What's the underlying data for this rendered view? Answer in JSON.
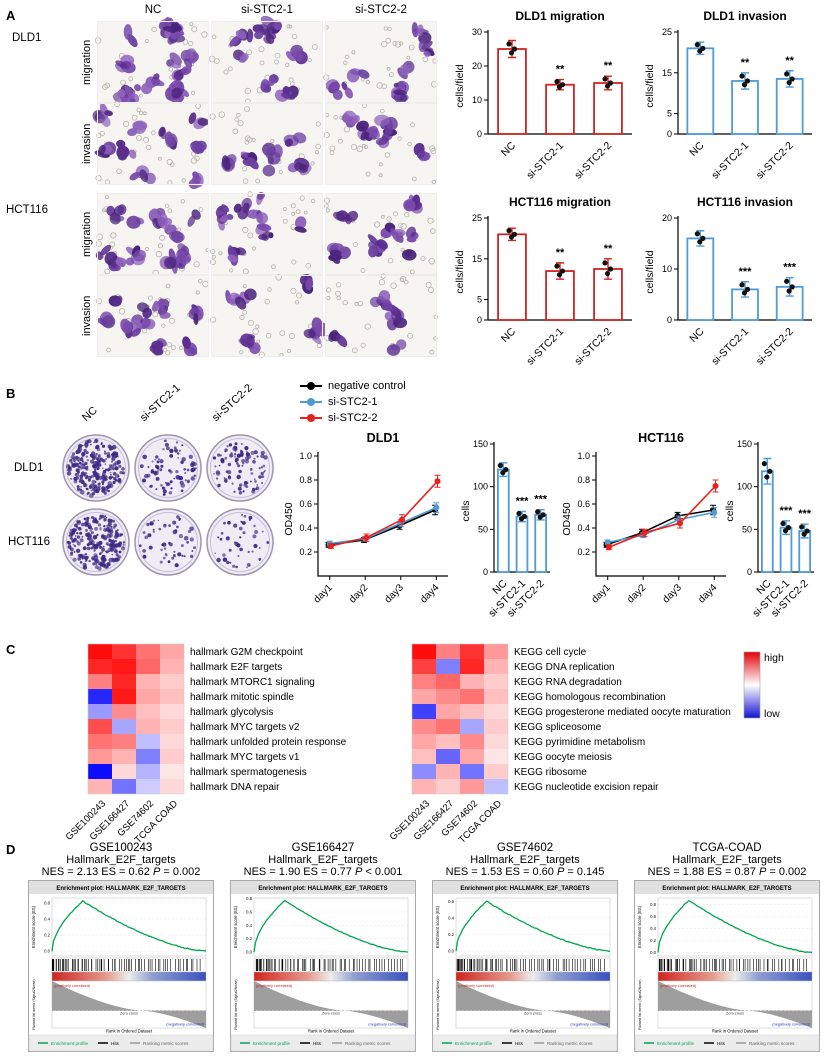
{
  "figure": {
    "panel_labels": {
      "a": "A",
      "b": "B",
      "c": "C",
      "d": "D"
    }
  },
  "panel_a": {
    "col_headers": [
      "NC",
      "si-STC2-1",
      "si-STC2-2"
    ],
    "groups": [
      {
        "cell_line": "DLD1",
        "rows": [
          "migration",
          "invasion"
        ]
      },
      {
        "cell_line": "HCT116",
        "rows": [
          "migration",
          "invasion"
        ]
      }
    ]
  },
  "panel_b": {
    "col_headers": [
      "NC",
      "si-STC2-1",
      "si-STC2-2"
    ],
    "row_labels": [
      "DLD1",
      "HCT116"
    ],
    "legend": [
      {
        "label": "negative control",
        "color": "#000000"
      },
      {
        "label": "si-STC2-1",
        "color": "#4f9bd6"
      },
      {
        "label": "si-STC2-2",
        "color": "#e8211d"
      }
    ]
  },
  "panel_c": {
    "legend_high": "high",
    "legend_low": "low",
    "colors": {
      "high": "#e3000b",
      "low": "#1414d2"
    }
  },
  "gsea": {
    "axis_es": "Enrichment score (ES)",
    "axis_rank": "Ranked list metric (Signal2Noise)",
    "axis_x": "Rank in Ordered Dataset",
    "legend": [
      "Enrichment profile",
      "Hits",
      "Ranking metric scores"
    ],
    "annotations": {
      "pos": "(positively correlated)",
      "zero": "Zero cross",
      "neg": "(negatively correlated)"
    },
    "plots": [
      {
        "dataset": "GSE100243",
        "gene_set": "Hallmark_E2F_targets",
        "stats_prefix": "NES = 2.13 ES = 0.62",
        "p_symbol": "P",
        "p_value": "= 0.002",
        "plot_title": "Enrichment plot: HALLMARK_E2F_TARGETS",
        "peak_es": 0.62
      },
      {
        "dataset": "GSE166427",
        "gene_set": "Hallmark_E2F_targets",
        "stats_prefix": "NES = 1.90 ES = 0.77",
        "p_symbol": "P",
        "p_value": "< 0.001",
        "plot_title": "Enrichment plot: HALLMARK_E2F_TARGETS",
        "peak_es": 0.77
      },
      {
        "dataset": "GSE74602",
        "gene_set": "Hallmark_E2F_targets",
        "stats_prefix": "NES = 1.53 ES = 0.60",
        "p_symbol": "P",
        "p_value": "= 0.145",
        "plot_title": "Enrichment plot: HALLMARK_E2F_TARGETS",
        "peak_es": 0.6
      },
      {
        "dataset": "TCGA-COAD",
        "gene_set": "Hallmark_E2F_targets",
        "stats_prefix": "NES = 1.88 ES = 0.87",
        "p_symbol": "P",
        "p_value": "= 0.002",
        "plot_title": "Enrichment plot: HALLMARK_E2F_TARGETS",
        "peak_es": 0.87
      }
    ]
  },
  "chart_data": [
    {
      "id": "dld1_migration",
      "type": "bar",
      "title": "DLD1 migration",
      "ylabel": "cells/field",
      "categories": [
        "NC",
        "si-STC2-1",
        "si-STC2-2"
      ],
      "values": [
        25,
        14.5,
        15
      ],
      "errors": [
        2.5,
        1.5,
        2
      ],
      "significance": [
        "",
        "**",
        "**"
      ],
      "ylim": [
        0,
        30
      ],
      "yticks": [
        0,
        10,
        20,
        30
      ],
      "color": "#d0241f"
    },
    {
      "id": "dld1_invasion",
      "type": "bar",
      "title": "DLD1 invasion",
      "ylabel": "cells/field",
      "categories": [
        "NC",
        "si-STC2-1",
        "si-STC2-2"
      ],
      "values": [
        21,
        13,
        13.5
      ],
      "errors": [
        1.5,
        2,
        2
      ],
      "significance": [
        "",
        "**",
        "**"
      ],
      "ylim": [
        0,
        25
      ],
      "yticks": [
        0,
        5,
        15,
        25
      ],
      "color": "#4f9bd6"
    },
    {
      "id": "hct116_migration",
      "type": "bar",
      "title": "HCT116 migration",
      "ylabel": "cells/field",
      "categories": [
        "NC",
        "si-STC2-1",
        "si-STC2-2"
      ],
      "values": [
        21,
        12,
        12.5
      ],
      "errors": [
        1.5,
        2,
        2.5
      ],
      "significance": [
        "",
        "**",
        "**"
      ],
      "ylim": [
        0,
        25
      ],
      "yticks": [
        0,
        5,
        15,
        25
      ],
      "color": "#d0241f"
    },
    {
      "id": "hct116_invasion",
      "type": "bar",
      "title": "HCT116 invasion",
      "ylabel": "cells/field",
      "categories": [
        "NC",
        "si-STC2-1",
        "si-STC2-2"
      ],
      "values": [
        16,
        6,
        6.5
      ],
      "errors": [
        1.5,
        1.5,
        1.8
      ],
      "significance": [
        "",
        "***",
        "***"
      ],
      "ylim": [
        0,
        20
      ],
      "yticks": [
        0,
        10,
        20
      ],
      "color": "#4f9bd6"
    },
    {
      "id": "dld1_od450",
      "type": "line",
      "title": "DLD1",
      "ylabel": "OD450",
      "x": [
        "day1",
        "day2",
        "day3",
        "day4"
      ],
      "ylim": [
        0,
        1.0
      ],
      "yticks": [
        0.2,
        0.4,
        0.6,
        0.8,
        1.0
      ],
      "series": [
        {
          "name": "negative control",
          "color": "#000000",
          "values": [
            0.26,
            0.3,
            0.42,
            0.55
          ],
          "errors": [
            0.02,
            0.02,
            0.03,
            0.04
          ]
        },
        {
          "name": "si-STC2-1",
          "color": "#4f9bd6",
          "values": [
            0.27,
            0.31,
            0.44,
            0.57
          ],
          "errors": [
            0.02,
            0.02,
            0.03,
            0.04
          ]
        },
        {
          "name": "si-STC2-2",
          "color": "#e8211d",
          "values": [
            0.25,
            0.32,
            0.47,
            0.79
          ],
          "errors": [
            0.02,
            0.03,
            0.04,
            0.05
          ]
        }
      ]
    },
    {
      "id": "dld1_cells",
      "type": "bar",
      "title": "",
      "ylabel": "cells",
      "categories": [
        "NC",
        "si-STC2-1",
        "si-STC2-2"
      ],
      "values": [
        120,
        65,
        67
      ],
      "errors": [
        8,
        6,
        6
      ],
      "significance": [
        "",
        "***",
        "***"
      ],
      "ylim": [
        0,
        150
      ],
      "yticks": [
        0,
        50,
        100,
        150
      ],
      "color": "#4f9bd6"
    },
    {
      "id": "hct116_od450",
      "type": "line",
      "title": "HCT116",
      "ylabel": "OD450",
      "x": [
        "day1",
        "day2",
        "day3",
        "day4"
      ],
      "ylim": [
        0,
        1.0
      ],
      "yticks": [
        0.2,
        0.4,
        0.6,
        0.8,
        1.0
      ],
      "series": [
        {
          "name": "negative control",
          "color": "#000000",
          "values": [
            0.26,
            0.36,
            0.5,
            0.55
          ],
          "errors": [
            0.02,
            0.03,
            0.03,
            0.04
          ]
        },
        {
          "name": "si-STC2-1",
          "color": "#4f9bd6",
          "values": [
            0.28,
            0.34,
            0.47,
            0.53
          ],
          "errors": [
            0.02,
            0.02,
            0.03,
            0.04
          ]
        },
        {
          "name": "si-STC2-2",
          "color": "#e8211d",
          "values": [
            0.24,
            0.36,
            0.44,
            0.75
          ],
          "errors": [
            0.02,
            0.03,
            0.04,
            0.05
          ]
        }
      ]
    },
    {
      "id": "hct116_cells",
      "type": "bar",
      "title": "",
      "ylabel": "cells",
      "categories": [
        "NC",
        "si-STC2-1",
        "si-STC2-2"
      ],
      "values": [
        118,
        52,
        48
      ],
      "errors": [
        15,
        8,
        8
      ],
      "significance": [
        "",
        "***",
        "***"
      ],
      "ylim": [
        0,
        150
      ],
      "yticks": [
        0,
        50,
        100,
        150
      ],
      "color": "#4f9bd6"
    },
    {
      "id": "hallmark_heatmap",
      "type": "heatmap",
      "columns": [
        "GSE100243",
        "GSE166427",
        "GSE74602",
        "TCGA COAD"
      ],
      "rows": [
        "hallmark G2M checkpoint",
        "hallmark E2F targets",
        "hallmark MTORC1 signaling",
        "hallmark mitotic spindle",
        "hallmark glycolysis",
        "hallmark MYC targets v2",
        "hallmark unfolded protein response",
        "hallmark MYC targets v1",
        "hallmark spermatogenesis",
        "hallmark DNA repair"
      ],
      "values": [
        [
          0.95,
          0.8,
          0.55,
          0.35
        ],
        [
          0.85,
          0.9,
          0.6,
          0.3
        ],
        [
          0.5,
          0.85,
          0.3,
          0.2
        ],
        [
          -0.85,
          0.9,
          0.35,
          0.25
        ],
        [
          -0.4,
          0.45,
          0.25,
          0.15
        ],
        [
          0.7,
          -0.35,
          0.3,
          0.2
        ],
        [
          0.55,
          0.5,
          -0.25,
          0.15
        ],
        [
          0.4,
          0.3,
          -0.5,
          0.2
        ],
        [
          -0.95,
          0.15,
          -0.3,
          0.1
        ],
        [
          0.3,
          -0.55,
          -0.2,
          0.15
        ]
      ]
    },
    {
      "id": "kegg_heatmap",
      "type": "heatmap",
      "columns": [
        "GSE100243",
        "GSE166427",
        "GSE74602",
        "TCGA COAD"
      ],
      "rows": [
        "KEGG cell cycle",
        "KEGG DNA replication",
        "KEGG RNA degradation",
        "KEGG homologous recombination",
        "KEGG progesterone mediated oocyte maturation",
        "KEGG spliceosome",
        "KEGG pyrimidine metabolism",
        "KEGG oocyte meiosis",
        "KEGG ribosome",
        "KEGG nucleotide excision repair"
      ],
      "values": [
        [
          0.95,
          0.5,
          0.8,
          0.4
        ],
        [
          0.75,
          -0.5,
          0.85,
          0.3
        ],
        [
          0.5,
          0.6,
          0.3,
          0.2
        ],
        [
          0.35,
          0.45,
          0.55,
          0.25
        ],
        [
          -0.75,
          0.35,
          0.25,
          0.15
        ],
        [
          0.45,
          0.55,
          -0.35,
          0.2
        ],
        [
          0.35,
          0.25,
          0.45,
          0.15
        ],
        [
          0.25,
          -0.6,
          0.35,
          0.1
        ],
        [
          -0.45,
          0.3,
          -0.55,
          0.2
        ],
        [
          0.3,
          0.2,
          0.4,
          -0.25
        ]
      ]
    }
  ]
}
